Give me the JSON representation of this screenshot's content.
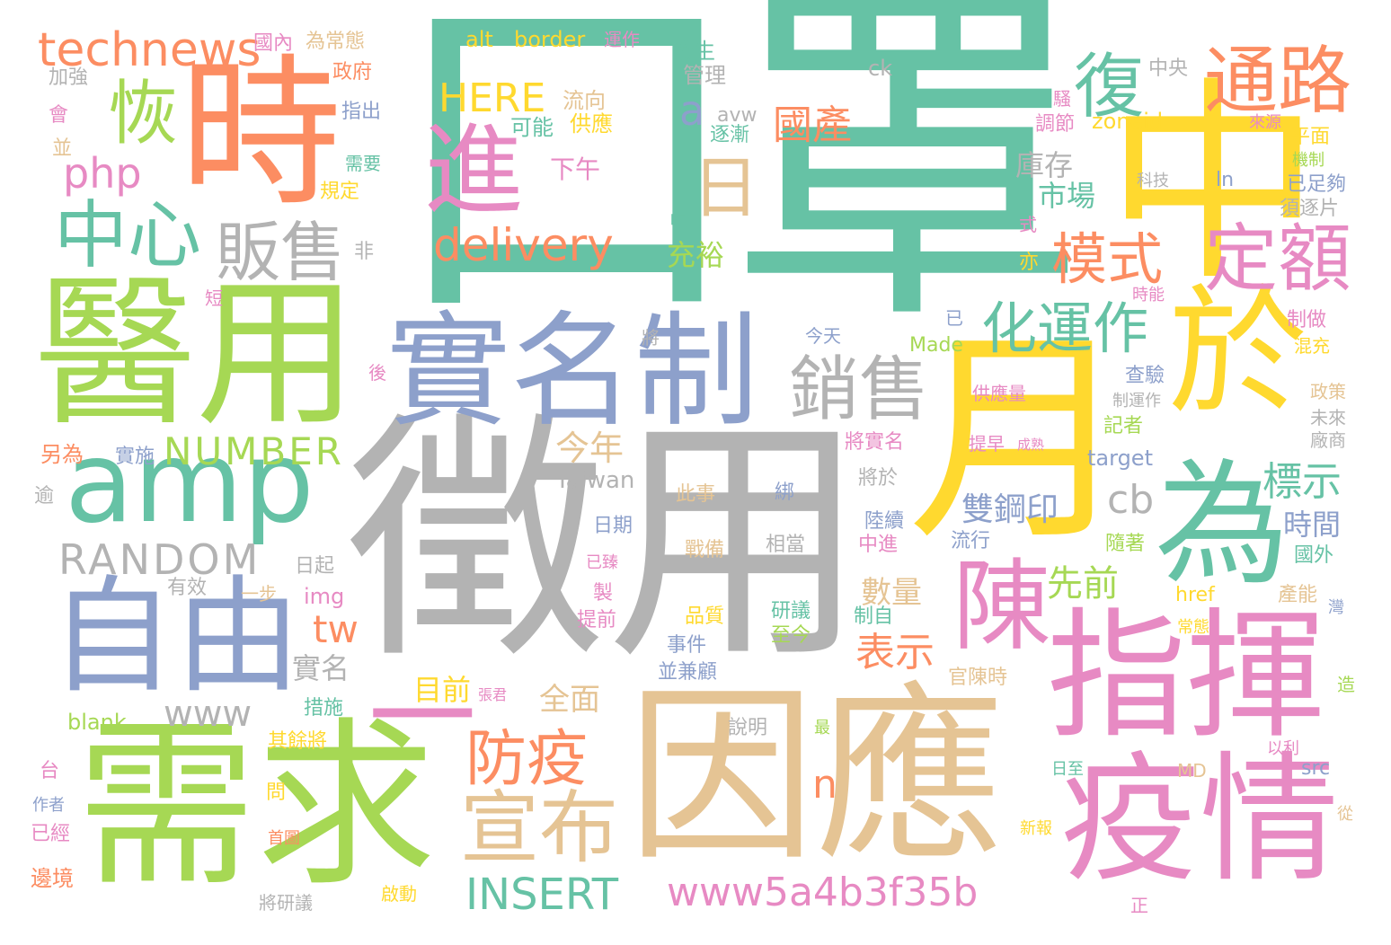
{
  "palette": {
    "teal": "#66c2a5",
    "orange": "#fc8d62",
    "blue": "#8da0cb",
    "pink": "#e78ac3",
    "green": "#a6d854",
    "yellow": "#ffd92f",
    "tan": "#e5c494",
    "gray": "#b3b3b3"
  },
  "words": [
    {
      "text": "口罩",
      "color": "teal"
    },
    {
      "text": "徵用",
      "color": "gray"
    },
    {
      "text": "醫用",
      "color": "green"
    },
    {
      "text": "需求",
      "color": "green"
    },
    {
      "text": "因應",
      "color": "tan"
    },
    {
      "text": "中",
      "color": "yellow"
    },
    {
      "text": "月",
      "color": "yellow"
    },
    {
      "text": "時",
      "color": "orange"
    },
    {
      "text": "實名制",
      "color": "blue"
    },
    {
      "text": "指揮",
      "color": "pink"
    },
    {
      "text": "疫情",
      "color": "pink"
    },
    {
      "text": "自由",
      "color": "blue"
    },
    {
      "text": "amp",
      "color": "teal"
    },
    {
      "text": "於",
      "color": "yellow"
    },
    {
      "text": "為",
      "color": "teal"
    },
    {
      "text": "進",
      "color": "pink"
    },
    {
      "text": "一",
      "color": "pink"
    },
    {
      "text": "陳",
      "color": "pink"
    },
    {
      "text": "通路",
      "color": "orange"
    },
    {
      "text": "定額",
      "color": "pink"
    },
    {
      "text": "恢",
      "color": "green"
    },
    {
      "text": "復",
      "color": "teal"
    },
    {
      "text": "中心",
      "color": "teal"
    },
    {
      "text": "販售",
      "color": "gray"
    },
    {
      "text": "銷售",
      "color": "gray"
    },
    {
      "text": "宣布",
      "color": "tan"
    },
    {
      "text": "防疫",
      "color": "orange"
    },
    {
      "text": "模式",
      "color": "orange"
    },
    {
      "text": "化運作",
      "color": "teal"
    },
    {
      "text": "日",
      "color": "tan"
    },
    {
      "text": "technews",
      "color": "orange"
    },
    {
      "text": "php",
      "color": "pink"
    },
    {
      "text": "delivery",
      "color": "orange"
    },
    {
      "text": "HERE",
      "color": "yellow"
    },
    {
      "text": "下午",
      "color": "pink"
    },
    {
      "text": "國產",
      "color": "orange"
    },
    {
      "text": "NUMBER",
      "color": "green"
    },
    {
      "text": "RANDOM",
      "color": "gray"
    },
    {
      "text": "INSERT",
      "color": "teal"
    },
    {
      "text": "www5a4b3f35b",
      "color": "pink"
    },
    {
      "text": "www",
      "color": "gray"
    },
    {
      "text": "tw",
      "color": "orange"
    },
    {
      "text": "cb",
      "color": "gray"
    },
    {
      "text": "n",
      "color": "orange"
    },
    {
      "text": "a",
      "color": "blue"
    },
    {
      "text": "今年",
      "color": "tan"
    },
    {
      "text": "標示",
      "color": "teal"
    },
    {
      "text": "雙鋼印",
      "color": "blue"
    },
    {
      "text": "先前",
      "color": "green"
    },
    {
      "text": "時間",
      "color": "blue"
    },
    {
      "text": "表示",
      "color": "orange"
    },
    {
      "text": "數量",
      "color": "tan"
    },
    {
      "text": "市場",
      "color": "teal"
    },
    {
      "text": "庫存",
      "color": "gray"
    },
    {
      "text": "充裕",
      "color": "green"
    },
    {
      "text": "實名",
      "color": "gray"
    },
    {
      "text": "全面",
      "color": "tan"
    },
    {
      "text": "目前",
      "color": "yellow"
    },
    {
      "text": "alt",
      "color": "yellow"
    },
    {
      "text": "border",
      "color": "yellow"
    },
    {
      "text": "運作",
      "color": "pink"
    },
    {
      "text": "發生",
      "color": "teal"
    },
    {
      "text": "管理",
      "color": "gray"
    },
    {
      "text": "ck",
      "color": "gray"
    },
    {
      "text": "中央",
      "color": "gray"
    },
    {
      "text": "流向",
      "color": "tan"
    },
    {
      "text": "供應",
      "color": "yellow"
    },
    {
      "text": "可能",
      "color": "teal"
    },
    {
      "text": "avw",
      "color": "gray"
    },
    {
      "text": "逐漸",
      "color": "teal"
    },
    {
      "text": "國內",
      "color": "pink"
    },
    {
      "text": "為常態",
      "color": "tan"
    },
    {
      "text": "加強",
      "color": "gray"
    },
    {
      "text": "政府",
      "color": "orange"
    },
    {
      "text": "指出",
      "color": "blue"
    },
    {
      "text": "會",
      "color": "pink"
    },
    {
      "text": "並",
      "color": "tan"
    },
    {
      "text": "需要",
      "color": "teal"
    },
    {
      "text": "規定",
      "color": "yellow"
    },
    {
      "text": "非",
      "color": "gray"
    },
    {
      "text": "短",
      "color": "pink"
    },
    {
      "text": "後",
      "color": "pink"
    },
    {
      "text": "另為",
      "color": "orange"
    },
    {
      "text": "實施",
      "color": "blue"
    },
    {
      "text": "逾",
      "color": "gray"
    },
    {
      "text": "Taiwan",
      "color": "gray"
    },
    {
      "text": "日起",
      "color": "gray"
    },
    {
      "text": "有效",
      "color": "gray"
    },
    {
      "text": "一步",
      "color": "tan"
    },
    {
      "text": "img",
      "color": "pink"
    },
    {
      "text": "blank",
      "color": "green"
    },
    {
      "text": "措施",
      "color": "teal"
    },
    {
      "text": "張君",
      "color": "pink"
    },
    {
      "text": "其餘將",
      "color": "yellow"
    },
    {
      "text": "台",
      "color": "pink"
    },
    {
      "text": "問",
      "color": "yellow"
    },
    {
      "text": "作者",
      "color": "blue"
    },
    {
      "text": "已經",
      "color": "pink"
    },
    {
      "text": "首圖",
      "color": "orange"
    },
    {
      "text": "邊境",
      "color": "orange"
    },
    {
      "text": "將研議",
      "color": "gray"
    },
    {
      "text": "啟動",
      "color": "yellow"
    },
    {
      "text": "zoneid",
      "color": "yellow"
    },
    {
      "text": "調節",
      "color": "pink"
    },
    {
      "text": "來源",
      "color": "pink"
    },
    {
      "text": "平面",
      "color": "yellow"
    },
    {
      "text": "機制",
      "color": "green"
    },
    {
      "text": "科技",
      "color": "gray"
    },
    {
      "text": "ln",
      "color": "blue"
    },
    {
      "text": "已足夠",
      "color": "blue"
    },
    {
      "text": "須逐片",
      "color": "gray"
    },
    {
      "text": "式",
      "color": "pink"
    },
    {
      "text": "亦",
      "color": "yellow"
    },
    {
      "text": "時能",
      "color": "pink"
    },
    {
      "text": "制做",
      "color": "pink"
    },
    {
      "text": "混充",
      "color": "yellow"
    },
    {
      "text": "政策",
      "color": "tan"
    },
    {
      "text": "未來",
      "color": "gray"
    },
    {
      "text": "廠商",
      "color": "gray"
    },
    {
      "text": "供應量",
      "color": "pink"
    },
    {
      "text": "制運作",
      "color": "gray"
    },
    {
      "text": "提早",
      "color": "pink"
    },
    {
      "text": "成熟",
      "color": "pink"
    },
    {
      "text": "查驗",
      "color": "blue"
    },
    {
      "text": "記者",
      "color": "green"
    },
    {
      "text": "target",
      "color": "blue"
    },
    {
      "text": "國外",
      "color": "teal"
    },
    {
      "text": "陸續",
      "color": "blue"
    },
    {
      "text": "流行",
      "color": "blue"
    },
    {
      "text": "中進",
      "color": "pink"
    },
    {
      "text": "隨著",
      "color": "green"
    },
    {
      "text": "已臻",
      "color": "pink"
    },
    {
      "text": "href",
      "color": "yellow"
    },
    {
      "text": "產能",
      "color": "tan"
    },
    {
      "text": "灣",
      "color": "blue"
    },
    {
      "text": "常態",
      "color": "yellow"
    },
    {
      "text": "官陳時",
      "color": "tan"
    },
    {
      "text": "造",
      "color": "green"
    },
    {
      "text": "以利",
      "color": "pink"
    },
    {
      "text": "MD",
      "color": "tan"
    },
    {
      "text": "src",
      "color": "blue"
    },
    {
      "text": "從",
      "color": "tan"
    },
    {
      "text": "日至",
      "color": "teal"
    },
    {
      "text": "新報",
      "color": "yellow"
    },
    {
      "text": "正",
      "color": "pink"
    },
    {
      "text": "已",
      "color": "blue"
    },
    {
      "text": "Made",
      "color": "green"
    },
    {
      "text": "今天",
      "color": "blue"
    },
    {
      "text": "將",
      "color": "gray"
    },
    {
      "text": "喧",
      "color": "teal"
    },
    {
      "text": "騷",
      "color": "pink"
    },
    {
      "text": "此事",
      "color": "tan"
    },
    {
      "text": "綁",
      "color": "blue"
    },
    {
      "text": "將實名",
      "color": "pink"
    },
    {
      "text": "將於",
      "color": "gray"
    },
    {
      "text": "日期",
      "color": "blue"
    },
    {
      "text": "相當",
      "color": "gray"
    },
    {
      "text": "戰備",
      "color": "tan"
    },
    {
      "text": "製",
      "color": "pink"
    },
    {
      "text": "提前",
      "color": "pink"
    },
    {
      "text": "品質",
      "color": "yellow"
    },
    {
      "text": "研議",
      "color": "teal"
    },
    {
      "text": "至今",
      "color": "green"
    },
    {
      "text": "制自",
      "color": "teal"
    },
    {
      "text": "事件",
      "color": "blue"
    },
    {
      "text": "並兼顧",
      "color": "blue"
    },
    {
      "text": "說明",
      "color": "gray"
    },
    {
      "text": "最",
      "color": "green"
    }
  ]
}
